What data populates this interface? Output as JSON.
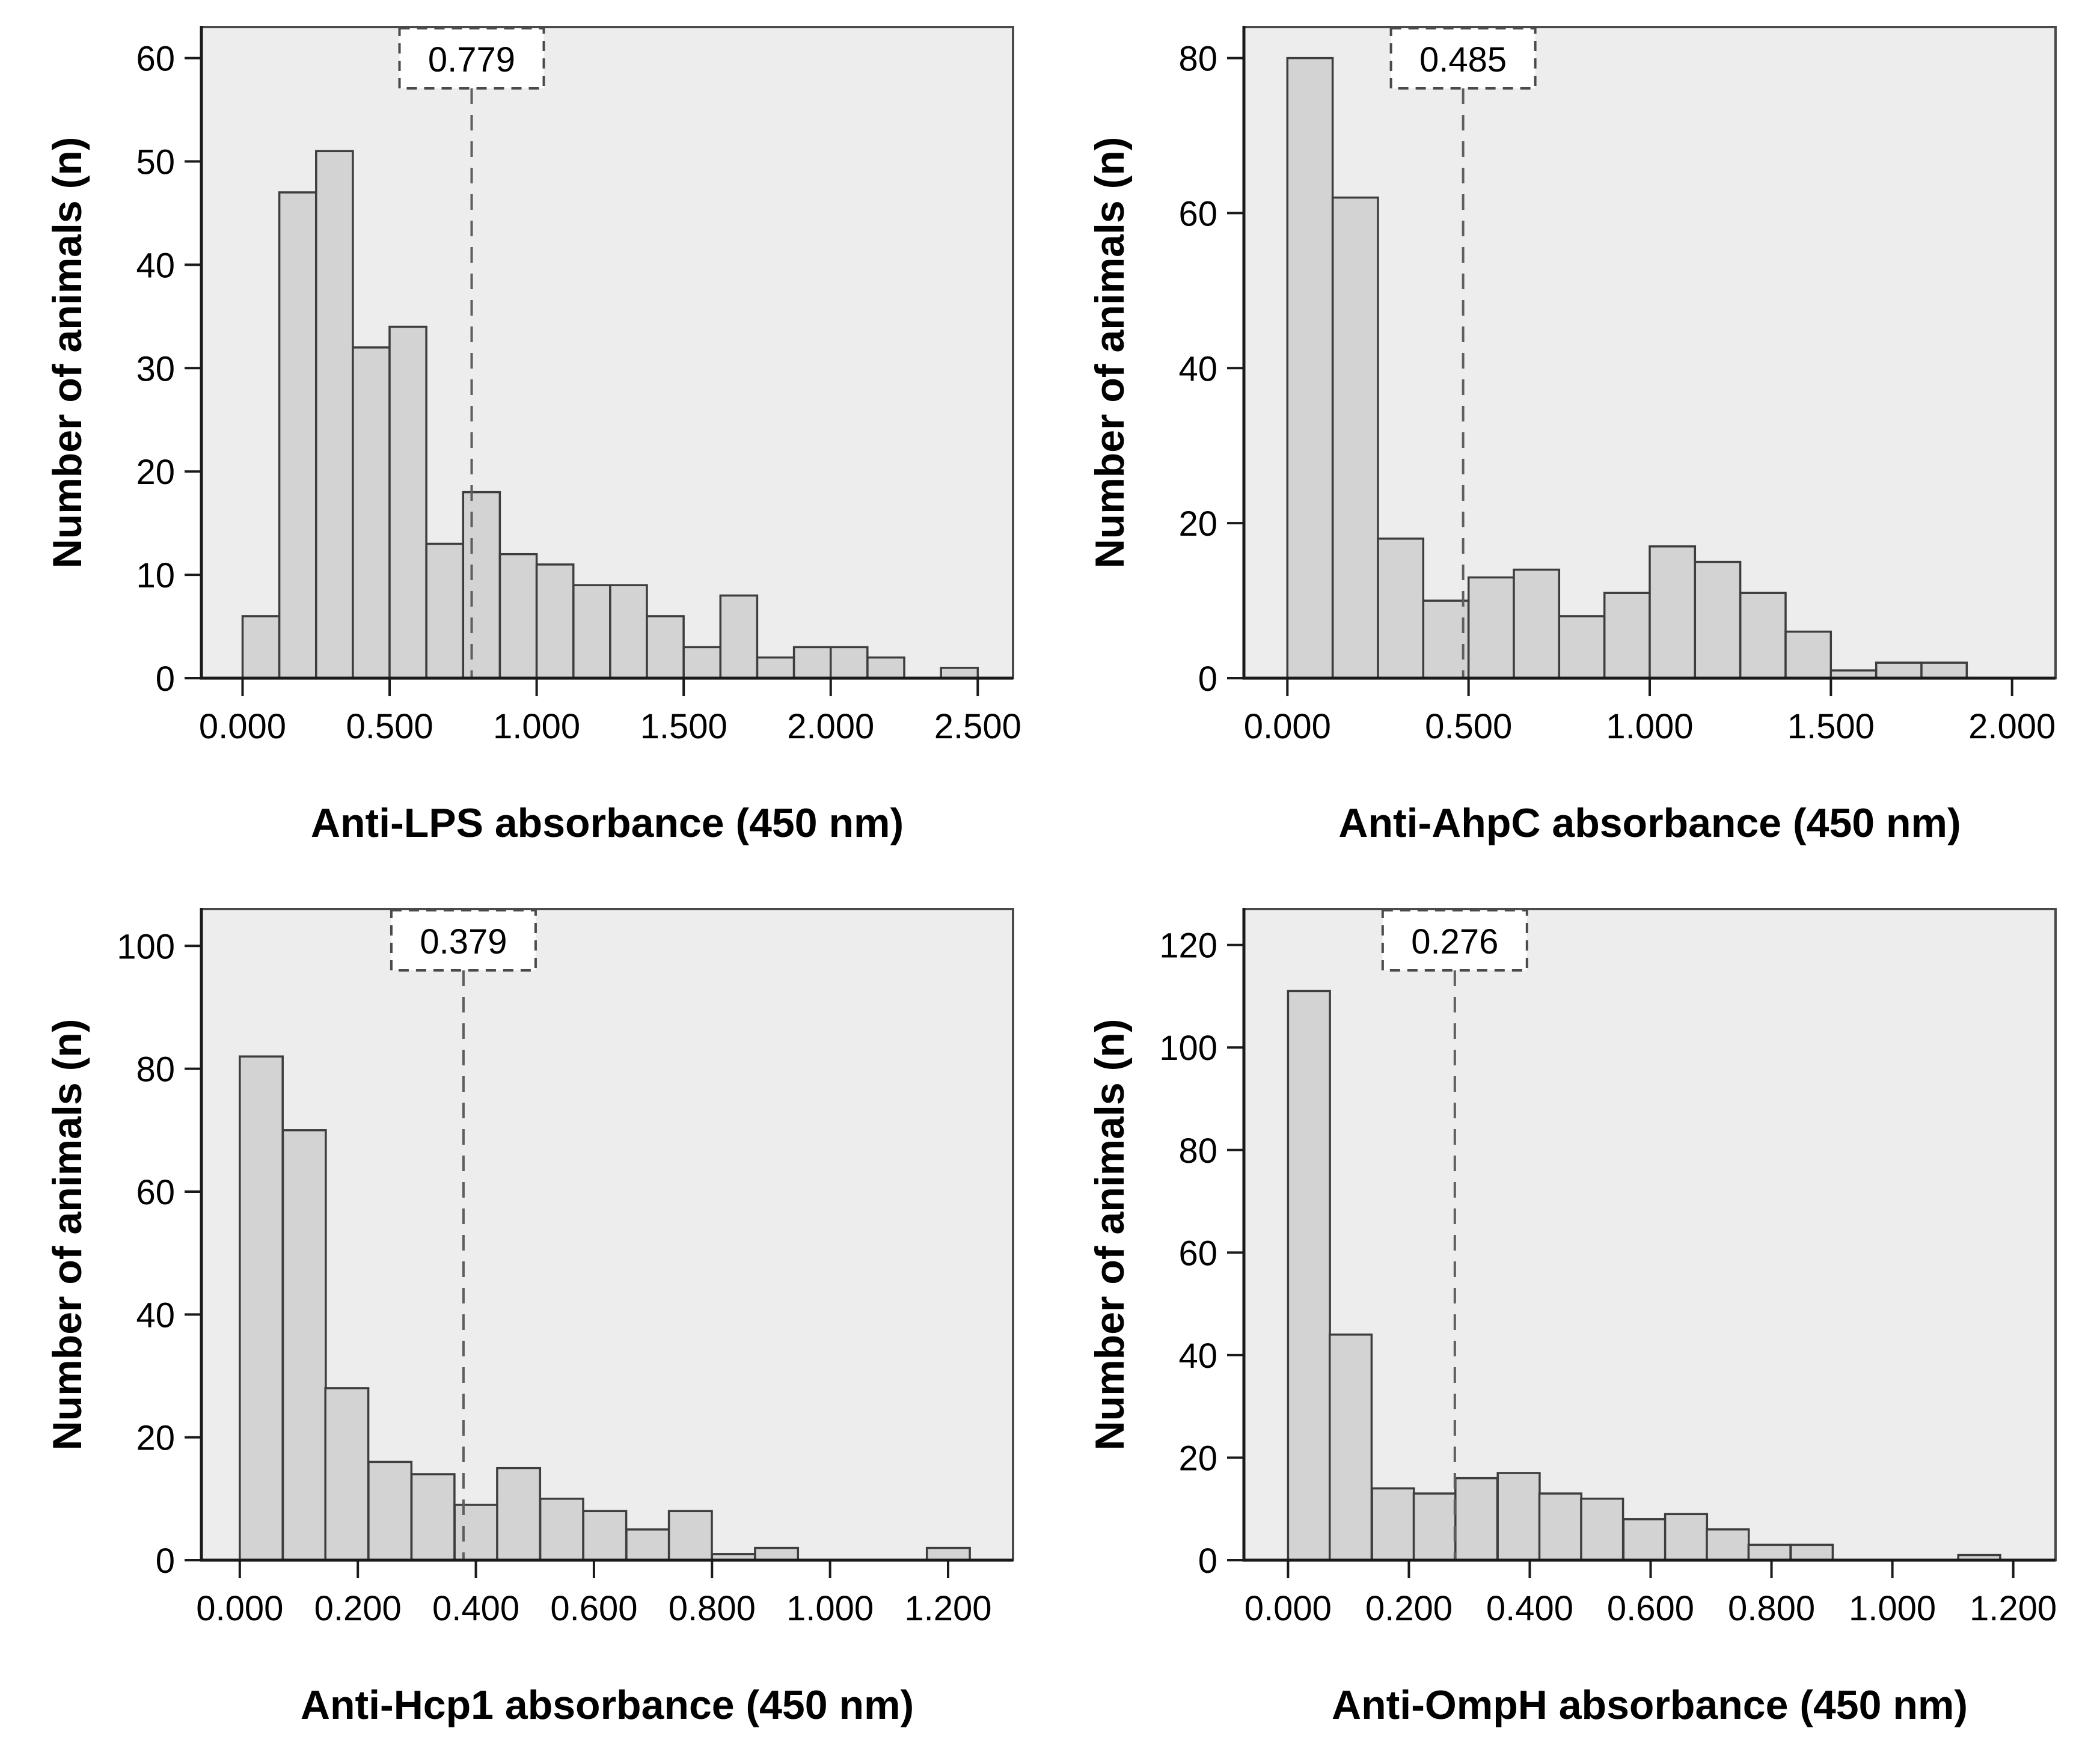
{
  "figure": {
    "description": "2x2 grid of serology histograms with seropositivity cut-off annotations",
    "background": "#ffffff"
  },
  "style": {
    "plot_bg": "#ededed",
    "bar_fill": "#d3d3d3",
    "bar_stroke": "#3d3d3d",
    "frame": "#4a4a4a",
    "axis": "#1a1a1a",
    "dash": "#5e5e5e",
    "cutoff_box_fill": "#ffffff",
    "text": "#000000"
  },
  "chart_data": [
    {
      "type": "bar",
      "name": "anti-lps-histogram",
      "xlabel": "Anti-LPS absorbance (450 nm)",
      "ylabel": "Number of animals (n)",
      "cutoff": {
        "value": 0.779,
        "label": "0.779"
      },
      "bin_width": 0.125,
      "bars": [
        {
          "x": 0.0,
          "n": 6
        },
        {
          "x": 0.125,
          "n": 47
        },
        {
          "x": 0.25,
          "n": 51
        },
        {
          "x": 0.375,
          "n": 32
        },
        {
          "x": 0.5,
          "n": 34
        },
        {
          "x": 0.625,
          "n": 13
        },
        {
          "x": 0.75,
          "n": 18
        },
        {
          "x": 0.875,
          "n": 12
        },
        {
          "x": 1.0,
          "n": 11
        },
        {
          "x": 1.125,
          "n": 9
        },
        {
          "x": 1.25,
          "n": 9
        },
        {
          "x": 1.375,
          "n": 6
        },
        {
          "x": 1.5,
          "n": 3
        },
        {
          "x": 1.625,
          "n": 8
        },
        {
          "x": 1.75,
          "n": 2
        },
        {
          "x": 1.875,
          "n": 3
        },
        {
          "x": 2.0,
          "n": 3
        },
        {
          "x": 2.125,
          "n": 2
        },
        {
          "x": 2.375,
          "n": 1
        }
      ],
      "x_ticks": [
        {
          "v": 0.0,
          "label": "0.000"
        },
        {
          "v": 0.5,
          "label": "0.500"
        },
        {
          "v": 1.0,
          "label": "1.000"
        },
        {
          "v": 1.5,
          "label": "1.500"
        },
        {
          "v": 2.0,
          "label": "2.000"
        },
        {
          "v": 2.5,
          "label": "2.500"
        }
      ],
      "y_ticks": [
        {
          "v": 0,
          "label": "0"
        },
        {
          "v": 10,
          "label": "10"
        },
        {
          "v": 20,
          "label": "20"
        },
        {
          "v": 30,
          "label": "30"
        },
        {
          "v": 40,
          "label": "40"
        },
        {
          "v": 50,
          "label": "50"
        },
        {
          "v": 60,
          "label": "60"
        }
      ],
      "xlim": [
        -0.14,
        2.62
      ],
      "ylim": [
        0,
        63
      ],
      "grid": false,
      "legend": null
    },
    {
      "type": "bar",
      "name": "anti-ahpc-histogram",
      "xlabel": "Anti-AhpC absorbance (450 nm)",
      "ylabel": "Number of animals (n)",
      "cutoff": {
        "value": 0.485,
        "label": "0.485"
      },
      "bin_width": 0.125,
      "bars": [
        {
          "x": 0.0,
          "n": 80
        },
        {
          "x": 0.125,
          "n": 62
        },
        {
          "x": 0.25,
          "n": 18
        },
        {
          "x": 0.375,
          "n": 10
        },
        {
          "x": 0.5,
          "n": 13
        },
        {
          "x": 0.625,
          "n": 14
        },
        {
          "x": 0.75,
          "n": 8
        },
        {
          "x": 0.875,
          "n": 11
        },
        {
          "x": 1.0,
          "n": 17
        },
        {
          "x": 1.125,
          "n": 15
        },
        {
          "x": 1.25,
          "n": 11
        },
        {
          "x": 1.375,
          "n": 6
        },
        {
          "x": 1.5,
          "n": 1
        },
        {
          "x": 1.625,
          "n": 2
        },
        {
          "x": 1.75,
          "n": 2
        }
      ],
      "x_ticks": [
        {
          "v": 0.0,
          "label": "0.000"
        },
        {
          "v": 0.5,
          "label": "0.500"
        },
        {
          "v": 1.0,
          "label": "1.000"
        },
        {
          "v": 1.5,
          "label": "1.500"
        },
        {
          "v": 2.0,
          "label": "2.000"
        }
      ],
      "y_ticks": [
        {
          "v": 0,
          "label": "0"
        },
        {
          "v": 20,
          "label": "20"
        },
        {
          "v": 40,
          "label": "40"
        },
        {
          "v": 60,
          "label": "60"
        },
        {
          "v": 80,
          "label": "80"
        }
      ],
      "xlim": [
        -0.12,
        2.12
      ],
      "ylim": [
        0,
        84
      ],
      "grid": false,
      "legend": null
    },
    {
      "type": "bar",
      "name": "anti-hcp1-histogram",
      "xlabel": "Anti-Hcp1 absorbance (450 nm)",
      "ylabel": "Number of animals (n)",
      "cutoff": {
        "value": 0.379,
        "label": "0.379"
      },
      "bin_width": 0.0727,
      "bars": [
        {
          "x": 0.0,
          "n": 82
        },
        {
          "x": 0.073,
          "n": 70
        },
        {
          "x": 0.145,
          "n": 28
        },
        {
          "x": 0.218,
          "n": 16
        },
        {
          "x": 0.291,
          "n": 14
        },
        {
          "x": 0.364,
          "n": 9
        },
        {
          "x": 0.436,
          "n": 15
        },
        {
          "x": 0.509,
          "n": 10
        },
        {
          "x": 0.582,
          "n": 8
        },
        {
          "x": 0.655,
          "n": 5
        },
        {
          "x": 0.727,
          "n": 8
        },
        {
          "x": 0.8,
          "n": 1
        },
        {
          "x": 0.873,
          "n": 2
        },
        {
          "x": 1.164,
          "n": 2
        }
      ],
      "x_ticks": [
        {
          "v": 0.0,
          "label": "0.000"
        },
        {
          "v": 0.2,
          "label": "0.200"
        },
        {
          "v": 0.4,
          "label": "0.400"
        },
        {
          "v": 0.6,
          "label": "0.600"
        },
        {
          "v": 0.8,
          "label": "0.800"
        },
        {
          "v": 1.0,
          "label": "1.000"
        },
        {
          "v": 1.2,
          "label": "1.200"
        }
      ],
      "y_ticks": [
        {
          "v": 0,
          "label": "0"
        },
        {
          "v": 20,
          "label": "20"
        },
        {
          "v": 40,
          "label": "40"
        },
        {
          "v": 60,
          "label": "60"
        },
        {
          "v": 80,
          "label": "80"
        },
        {
          "v": 100,
          "label": "100"
        }
      ],
      "xlim": [
        -0.065,
        1.31
      ],
      "ylim": [
        0,
        106
      ],
      "grid": false,
      "legend": null
    },
    {
      "type": "bar",
      "name": "anti-omph-histogram",
      "xlabel": "Anti-OmpH absorbance (450 nm)",
      "ylabel": "Number of animals (n)",
      "cutoff": {
        "value": 0.276,
        "label": "0.276"
      },
      "bin_width": 0.0693,
      "bars": [
        {
          "x": 0.0,
          "n": 111
        },
        {
          "x": 0.069,
          "n": 44
        },
        {
          "x": 0.139,
          "n": 14
        },
        {
          "x": 0.208,
          "n": 13
        },
        {
          "x": 0.277,
          "n": 16
        },
        {
          "x": 0.347,
          "n": 17
        },
        {
          "x": 0.416,
          "n": 13
        },
        {
          "x": 0.485,
          "n": 12
        },
        {
          "x": 0.555,
          "n": 8
        },
        {
          "x": 0.624,
          "n": 9
        },
        {
          "x": 0.693,
          "n": 6
        },
        {
          "x": 0.762,
          "n": 3
        },
        {
          "x": 0.832,
          "n": 3
        },
        {
          "x": 1.109,
          "n": 1
        }
      ],
      "x_ticks": [
        {
          "v": 0.0,
          "label": "0.000"
        },
        {
          "v": 0.2,
          "label": "0.200"
        },
        {
          "v": 0.4,
          "label": "0.400"
        },
        {
          "v": 0.6,
          "label": "0.600"
        },
        {
          "v": 0.8,
          "label": "0.800"
        },
        {
          "v": 1.0,
          "label": "1.000"
        },
        {
          "v": 1.2,
          "label": "1.200"
        }
      ],
      "y_ticks": [
        {
          "v": 0,
          "label": "0"
        },
        {
          "v": 20,
          "label": "20"
        },
        {
          "v": 40,
          "label": "40"
        },
        {
          "v": 60,
          "label": "60"
        },
        {
          "v": 80,
          "label": "80"
        },
        {
          "v": 100,
          "label": "100"
        },
        {
          "v": 120,
          "label": "120"
        }
      ],
      "xlim": [
        -0.073,
        1.27
      ],
      "ylim": [
        0,
        127
      ],
      "grid": false,
      "legend": null
    }
  ]
}
